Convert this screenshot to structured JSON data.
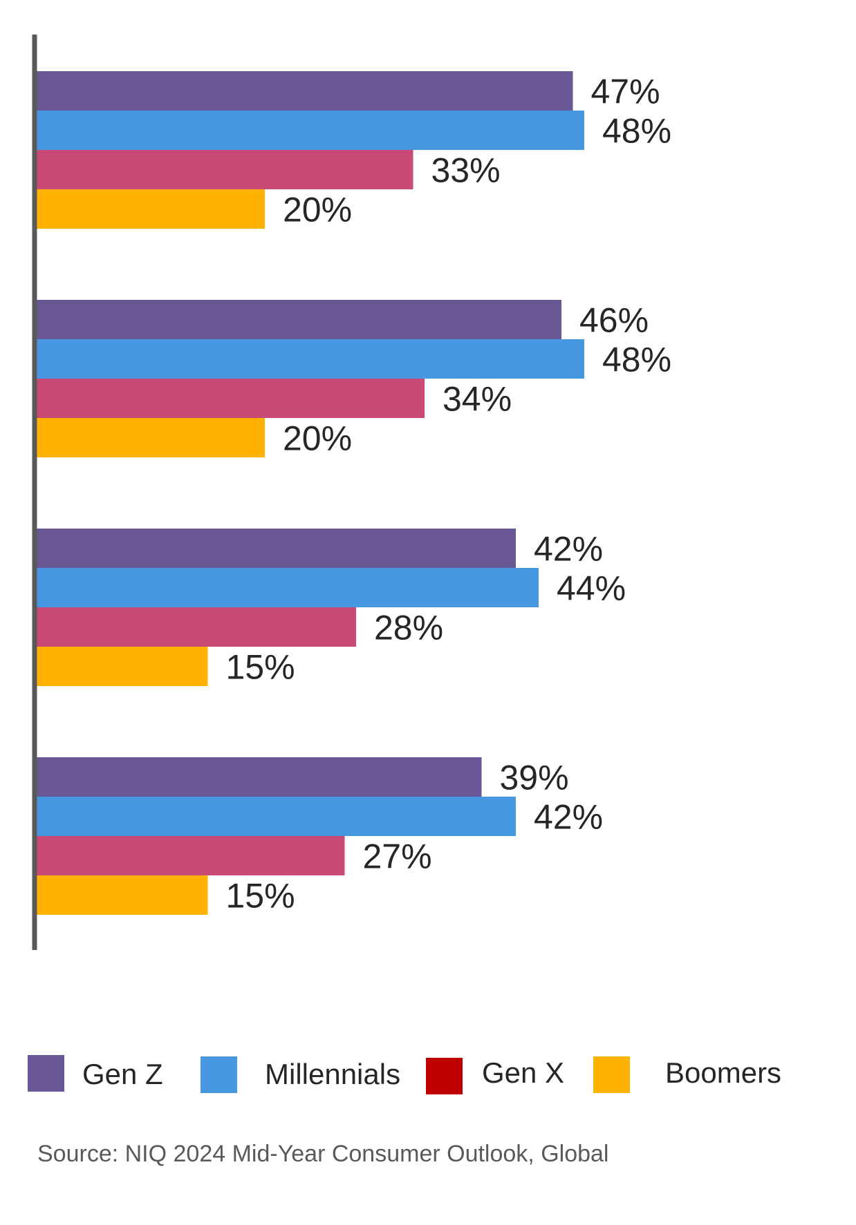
{
  "chart_data": {
    "type": "bar",
    "orientation": "horizontal",
    "categories": [
      "",
      "",
      "",
      ""
    ],
    "series": [
      {
        "name": "Gen Z",
        "color": "#695795",
        "values": [
          47,
          46,
          42,
          39
        ],
        "labels": [
          "47%",
          "46%",
          "42%",
          "39%"
        ]
      },
      {
        "name": "Millennials",
        "color": "#4699E0",
        "values": [
          48,
          48,
          44,
          42
        ],
        "labels": [
          "48%",
          "48%",
          "44%",
          "42%"
        ]
      },
      {
        "name": "Gen X",
        "color": "#C94A77",
        "legend_color": "#C00000",
        "values": [
          33,
          34,
          28,
          27
        ],
        "labels": [
          "33%",
          "34%",
          "28%",
          "27%"
        ]
      },
      {
        "name": "Boomers",
        "color": "#FFB300",
        "values": [
          20,
          20,
          15,
          15
        ],
        "labels": [
          "20%",
          "20%",
          "15%",
          "15%"
        ]
      }
    ],
    "value_unit": "%",
    "xlim": [
      0,
      60
    ],
    "grid": false,
    "legend_position": "bottom"
  },
  "source": "Source: NIQ 2024 Mid-Year Consumer Outlook, Global"
}
